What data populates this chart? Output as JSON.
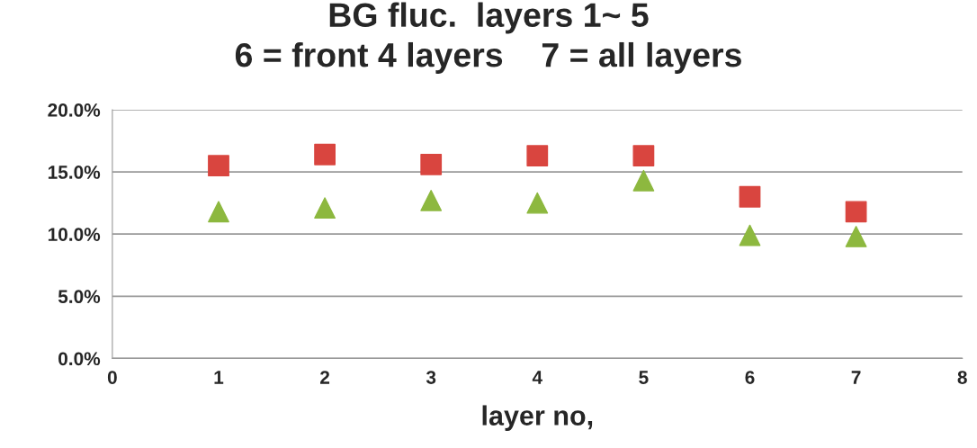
{
  "chart_data": {
    "type": "scatter",
    "title": "BG fluc.  layers 1~ 5\n6 = front 4 layers    7 = all layers",
    "xlabel": "layer no,",
    "x": [
      1,
      2,
      3,
      4,
      5,
      6,
      7
    ],
    "series": [
      {
        "color": "#d9453f",
        "marker": "square",
        "values": [
          15.5,
          16.4,
          15.6,
          16.3,
          16.3,
          13.0,
          11.8
        ]
      },
      {
        "color": "#8db83f",
        "marker": "triangle",
        "values": [
          11.8,
          12.1,
          12.7,
          12.5,
          14.3,
          9.9,
          9.8
        ]
      }
    ],
    "xlim": [
      0,
      8
    ],
    "xticks": [
      0,
      1,
      2,
      3,
      4,
      5,
      6,
      7,
      8
    ],
    "ylim": [
      0,
      20
    ],
    "yticks": [
      {
        "value": 0,
        "label": "0.0%"
      },
      {
        "value": 5,
        "label": "5.0%"
      },
      {
        "value": 10,
        "label": "10.0%"
      },
      {
        "value": 15,
        "label": "15.0%"
      },
      {
        "value": 20,
        "label": "20.0%"
      }
    ],
    "grid": "y",
    "legend": false
  }
}
